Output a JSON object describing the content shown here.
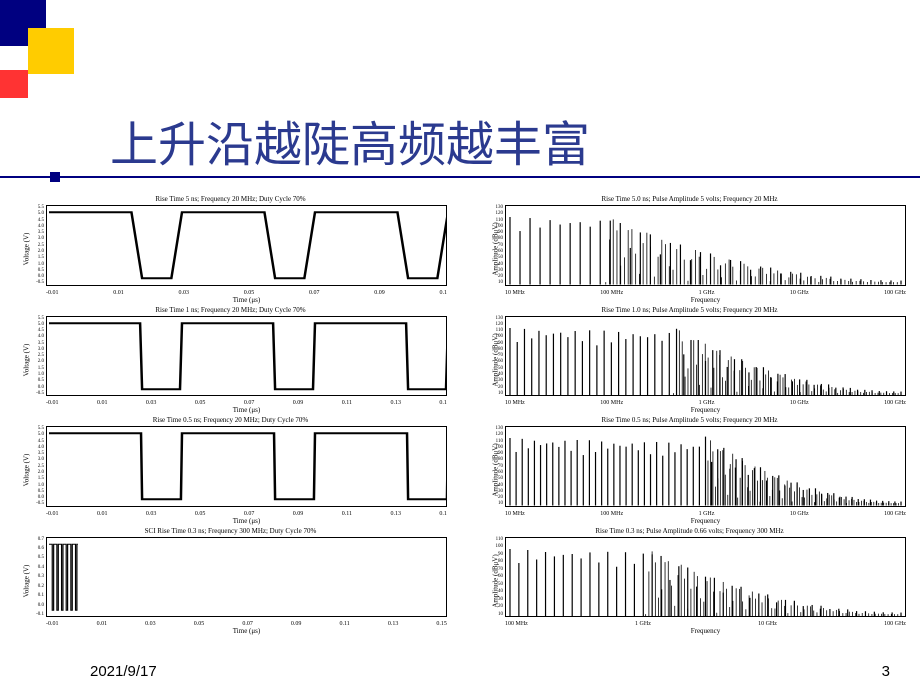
{
  "title": "上升沿越陡高频越丰富",
  "footer": {
    "date": "2021/9/17",
    "page": "3"
  },
  "colors": {
    "title": "#2b3a8f",
    "deco_blue": "#000080",
    "deco_yellow": "#ffcc00",
    "deco_red": "#ff3333",
    "axis": "#000000",
    "plot_bg": "#ffffff",
    "line": "#000000"
  },
  "time_panels": [
    {
      "title": "Rise Time 5 ns; Frequency 20 MHz; Duty Cycle 70%",
      "ylabel": "Voltage (V)",
      "xlabel": "Time (μs)",
      "xticks": [
        "-0.01",
        "0.01",
        "0.03",
        "0.05",
        "0.07",
        "0.09",
        "0.1"
      ],
      "yticks": [
        "5.5",
        "5.0",
        "4.5",
        "4.0",
        "3.5",
        "3.0",
        "2.5",
        "2.0",
        "1.5",
        "1.0",
        "0.5",
        "0.0",
        "-0.5"
      ],
      "rise_frac": 0.08,
      "period_count": 3,
      "duty": 0.7,
      "line_width": 2.5
    },
    {
      "title": "Rise Time 1 ns; Frequency 20 MHz; Duty Cycle 70%",
      "ylabel": "Voltage (V)",
      "xlabel": "Time (μs)",
      "xticks": [
        "-0.01",
        "0.01",
        "0.03",
        "0.05",
        "0.07",
        "0.09",
        "0.11",
        "0.13",
        "0.1"
      ],
      "yticks": [
        "5.5",
        "5.0",
        "4.5",
        "4.0",
        "3.5",
        "3.0",
        "2.5",
        "2.0",
        "1.5",
        "1.0",
        "0.5",
        "0.0",
        "-0.5"
      ],
      "rise_frac": 0.015,
      "period_count": 3,
      "duty": 0.7,
      "line_width": 2.5
    },
    {
      "title": "Rise Time 0.5 ns; Frequency 20 MHz; Duty Cycle 70%",
      "ylabel": "Voltage (V)",
      "xlabel": "Time (μs)",
      "xticks": [
        "-0.01",
        "0.01",
        "0.03",
        "0.05",
        "0.07",
        "0.09",
        "0.11",
        "0.13",
        "0.1"
      ],
      "yticks": [
        "5.5",
        "5.0",
        "4.5",
        "4.0",
        "3.5",
        "3.0",
        "2.5",
        "2.0",
        "1.5",
        "1.0",
        "0.5",
        "0.0",
        "-0.5"
      ],
      "rise_frac": 0.008,
      "period_count": 3,
      "duty": 0.7,
      "line_width": 2.5
    },
    {
      "title": "SCI Rise Time 0.3 ns; Frequency 300 MHz; Duty Cycle 70%",
      "ylabel": "Voltage (V)",
      "xlabel": "Time (μs)",
      "xticks": [
        "-0.01",
        "0.01",
        "0.03",
        "0.05",
        "0.07",
        "0.09",
        "0.11",
        "0.13",
        "0.15"
      ],
      "yticks": [
        "0.7",
        "0.6",
        "0.5",
        "0.4",
        "0.3",
        "0.2",
        "0.1",
        "0.0",
        "-0.1"
      ],
      "rise_frac": 0.002,
      "period_count": 6,
      "duty": 0.7,
      "compress_x": 0.07,
      "line_width": 1.2
    }
  ],
  "freq_panels": [
    {
      "title": "Rise Time 5.0 ns; Pulse Amplitude 5 volts; Frequency 20 MHz",
      "ylabel": "Amplitude (dBμV)",
      "xlabel": "Frequency",
      "xticks": [
        "10 MHz",
        "100 MHz",
        "1 GHz",
        "10 GHz",
        "100 GHz"
      ],
      "yticks": [
        "130",
        "120",
        "110",
        "100",
        "90",
        "80",
        "70",
        "60",
        "50",
        "40",
        "30",
        "20",
        "10"
      ],
      "decay_start": 0.25,
      "line_density": 40
    },
    {
      "title": "Rise Time 1.0 ns; Pulse Amplitude 5 volts; Frequency 20 MHz",
      "ylabel": "Amplitude (dBμV)",
      "xlabel": "Frequency",
      "xticks": [
        "10 MHz",
        "100 MHz",
        "1 GHz",
        "10 GHz",
        "100 GHz"
      ],
      "yticks": [
        "130",
        "120",
        "110",
        "100",
        "90",
        "80",
        "70",
        "60",
        "50",
        "40",
        "30",
        "20",
        "10"
      ],
      "decay_start": 0.42,
      "line_density": 55
    },
    {
      "title": "Rise Time 0.5 ns; Pulse Amplitude 5 volts; Frequency 20 MHz",
      "ylabel": "Amplitude (dBμV)",
      "xlabel": "Frequency",
      "xticks": [
        "10 MHz",
        "100 MHz",
        "1 GHz",
        "10 GHz",
        "100 GHz"
      ],
      "yticks": [
        "130",
        "120",
        "110",
        "100",
        "90",
        "80",
        "70",
        "60",
        "50",
        "40",
        "30",
        "20",
        "10"
      ],
      "decay_start": 0.5,
      "line_density": 65
    },
    {
      "title": "Rise Time 0.3 ns; Pulse Amplitude 0.66 volts; Frequency 300 MHz",
      "ylabel": "Amplitude (dBμV)",
      "xlabel": "Frequency",
      "xticks": [
        "100 MHz",
        "1 GHz",
        "10 GHz",
        "100 GHz"
      ],
      "yticks": [
        "110",
        "100",
        "90",
        "80",
        "70",
        "60",
        "50",
        "40",
        "30",
        "20",
        "10"
      ],
      "decay_start": 0.35,
      "line_density": 45
    }
  ]
}
